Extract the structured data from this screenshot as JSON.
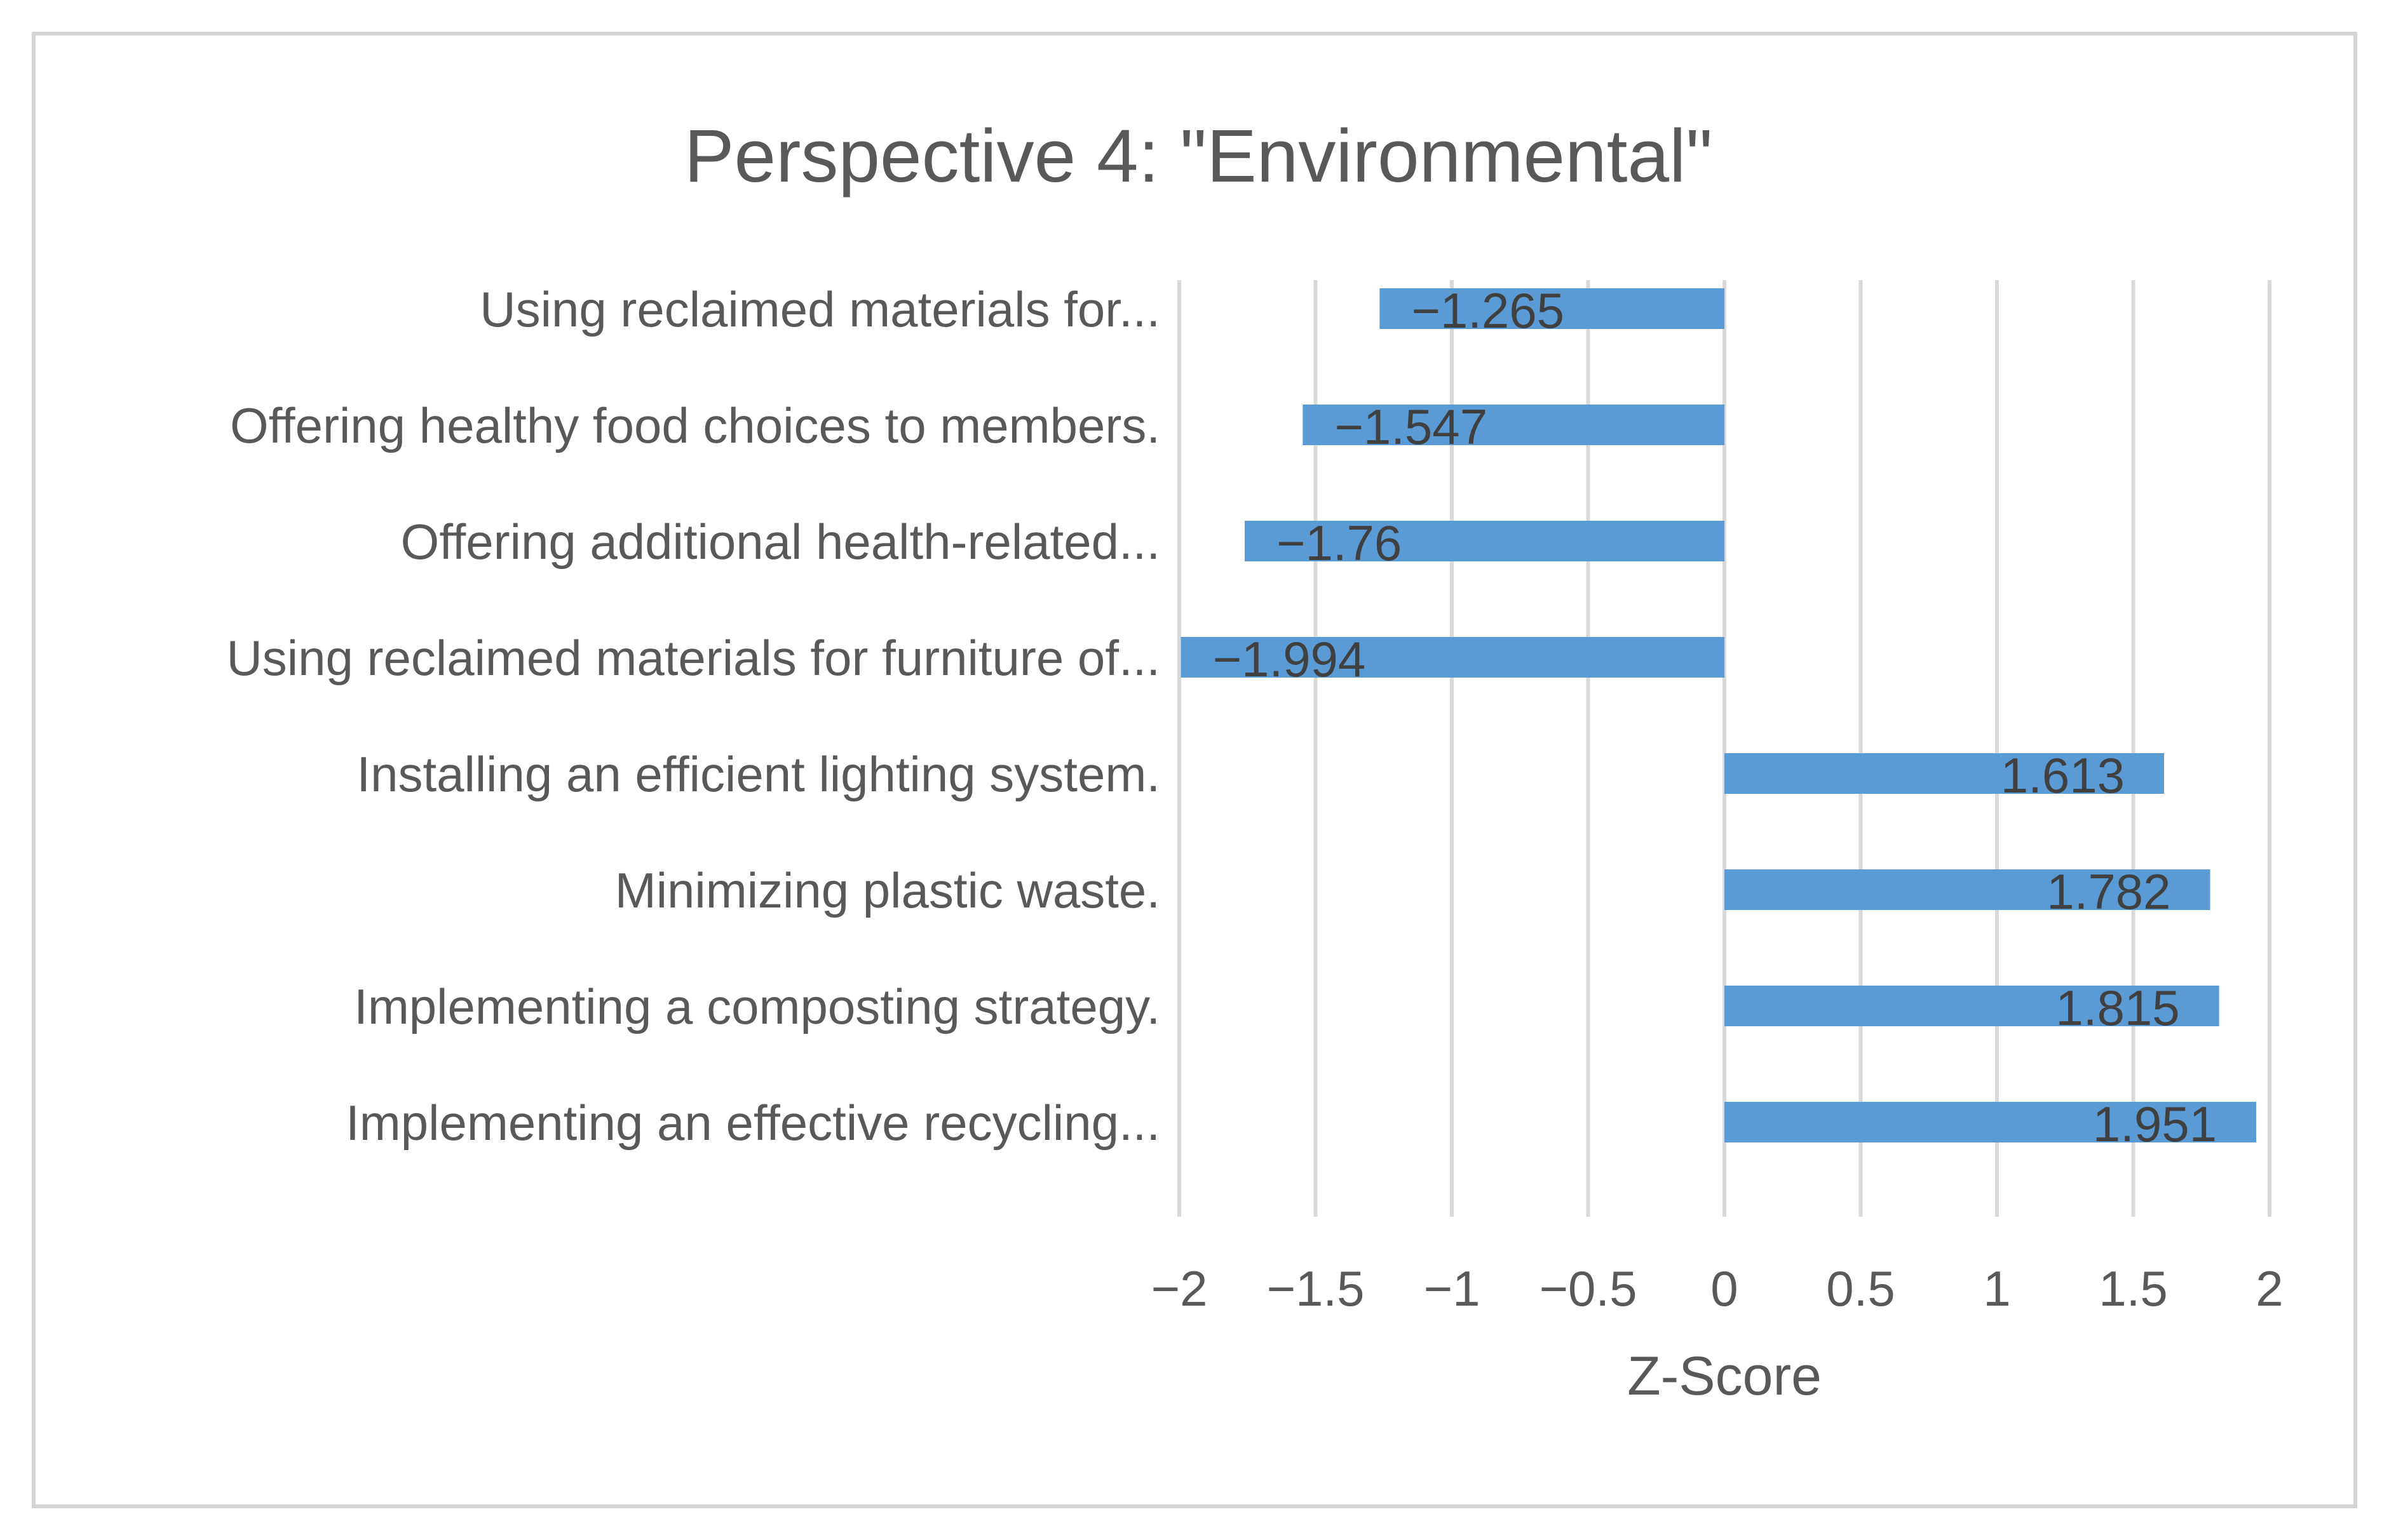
{
  "chart_data": {
    "type": "bar",
    "orientation": "horizontal",
    "title": "Perspective 4: \"Environmental\"",
    "xlabel": "Z-Score",
    "ylabel": "",
    "xlim": [
      -2,
      2
    ],
    "xticks": [
      -2,
      -1.5,
      -1,
      -0.5,
      0,
      0.5,
      1,
      1.5,
      2
    ],
    "xtick_labels": [
      "−2",
      "−1.5",
      "−1",
      "−0.5",
      "0",
      "0.5",
      "1",
      "1.5",
      "2"
    ],
    "grid": true,
    "legend": "none",
    "bar_color": "#5b9bd5",
    "categories": [
      "Using reclaimed materials for...",
      "Offering healthy food choices to members.",
      "Offering additional health-related...",
      "Using reclaimed materials for furniture of...",
      "Installing an efficient lighting system.",
      "Minimizing plastic waste.",
      "Implementing a composting strategy.",
      "Implementing an effective recycling..."
    ],
    "values": [
      -1.265,
      -1.547,
      -1.76,
      -1.994,
      1.613,
      1.782,
      1.815,
      1.951
    ],
    "data_labels": [
      "−1.265",
      "−1.547",
      "−1.76",
      "−1.994",
      "1.613",
      "1.782",
      "1.815",
      "1.951"
    ]
  }
}
